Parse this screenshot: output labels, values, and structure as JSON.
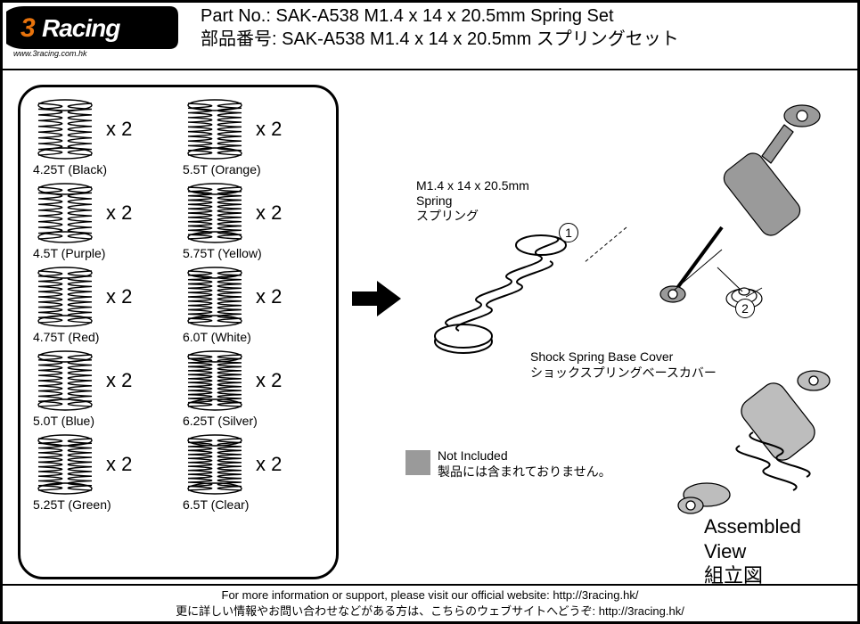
{
  "header": {
    "logo_text_top": "Racing",
    "logo_text_sub": "www.3racing.com.hk",
    "logo_prefix": "3",
    "title_en": "Part No.: SAK-A538  M1.4 x 14 x 20.5mm Spring Set",
    "title_jp": "部品番号: SAK-A538  M1.4 x 14 x 20.5mm スプリングセット"
  },
  "colors": {
    "black": "#000000",
    "white": "#ffffff",
    "grey": "#9a9a9a",
    "logo_bg": "#000000",
    "logo_orange": "#e8730c"
  },
  "springs": [
    {
      "label": "4.25T (Black)",
      "qty": "x 2",
      "turns": 4.25
    },
    {
      "label": "5.5T (Orange)",
      "qty": "x 2",
      "turns": 5.5
    },
    {
      "label": "4.5T (Purple)",
      "qty": "x 2",
      "turns": 4.5
    },
    {
      "label": "5.75T (Yellow)",
      "qty": "x 2",
      "turns": 5.75
    },
    {
      "label": "4.75T (Red)",
      "qty": "x 2",
      "turns": 4.75
    },
    {
      "label": "6.0T (White)",
      "qty": "x 2",
      "turns": 6.0
    },
    {
      "label": "5.0T (Blue)",
      "qty": "x 2",
      "turns": 5.0
    },
    {
      "label": "6.25T (Silver)",
      "qty": "x 2",
      "turns": 6.25
    },
    {
      "label": "5.25T (Green)",
      "qty": "x 2",
      "turns": 5.25
    },
    {
      "label": "6.5T (Clear)",
      "qty": "x 2",
      "turns": 6.5
    }
  ],
  "diagram": {
    "spring_label_en": "M1.4 x 14 x 20.5mm",
    "spring_label_en2": "Spring",
    "spring_label_jp": "スプリング",
    "step1": "1",
    "step2": "2",
    "cover_label_en": "Shock Spring Base Cover",
    "cover_label_jp": "ショックスプリングベースカバー",
    "not_included_en": "Not Included",
    "not_included_jp": "製品には含まれておりません。",
    "assembled_en": "Assembled View",
    "assembled_jp": "組立図"
  },
  "footer": {
    "line_en": "For more information or support, please visit our official website: http://3racing.hk/",
    "line_jp": "更に詳しい情報やお問い合わせなどがある方は、こちらのウェブサイトへどうぞ: http://3racing.hk/"
  }
}
